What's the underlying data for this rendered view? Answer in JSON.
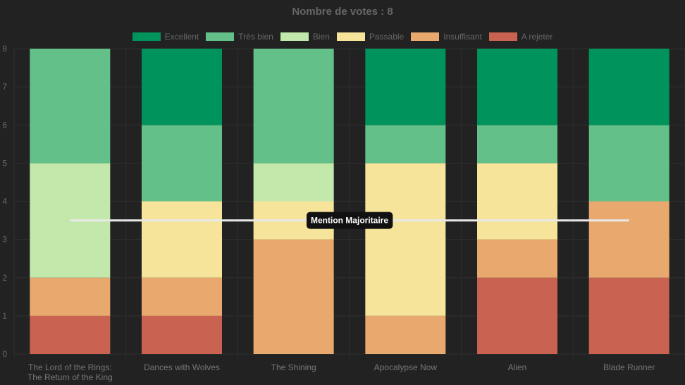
{
  "chart_data": {
    "type": "bar",
    "stacked": true,
    "title": "Nombre de votes : 8",
    "categories": [
      [
        "The Lord of the Rings:",
        "The Return of the King"
      ],
      [
        "Dances with Wolves"
      ],
      [
        "The Shining"
      ],
      [
        "Apocalypse Now"
      ],
      [
        "Alien"
      ],
      [
        "Blade Runner"
      ]
    ],
    "series": [
      {
        "name": "A rejeter",
        "color": "#c96250",
        "values": [
          1,
          1,
          0,
          0,
          2,
          2
        ]
      },
      {
        "name": "Insuffisant",
        "color": "#e8a86e",
        "values": [
          1,
          1,
          3,
          1,
          1,
          2
        ]
      },
      {
        "name": "Passable",
        "color": "#f5e49a",
        "values": [
          0,
          2,
          1,
          4,
          2,
          0
        ]
      },
      {
        "name": "Bien",
        "color": "#c2e8ac",
        "values": [
          3,
          0,
          1,
          0,
          0,
          0
        ]
      },
      {
        "name": "Très bien",
        "color": "#62c088",
        "values": [
          3,
          2,
          3,
          1,
          1,
          2
        ]
      },
      {
        "name": "Excellent",
        "color": "#00935c",
        "values": [
          0,
          2,
          0,
          2,
          2,
          2
        ]
      }
    ],
    "legend_order": [
      "Excellent",
      "Très bien",
      "Bien",
      "Passable",
      "Insuffisant",
      "A rejeter"
    ],
    "ylim": [
      0,
      8
    ],
    "yticks": [
      0,
      1,
      2,
      3,
      4,
      5,
      6,
      7,
      8
    ],
    "grid": true,
    "legend_position": "top",
    "annotation": {
      "label": "Mention Majoritaire",
      "y": 3.5,
      "color": "#e8e8e8"
    }
  }
}
